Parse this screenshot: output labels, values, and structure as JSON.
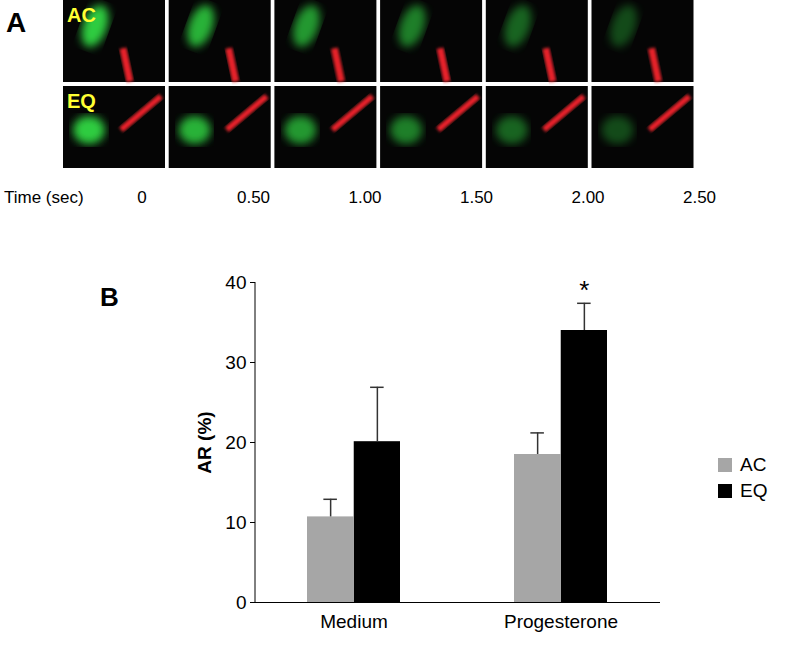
{
  "panel_a": {
    "label": "A",
    "rows": [
      "AC",
      "EQ"
    ],
    "time_label": "Time (sec)",
    "times": [
      "0",
      "0.50",
      "1.00",
      "1.50",
      "2.00",
      "2.50"
    ]
  },
  "chart_data": {
    "type": "bar",
    "title": "B",
    "categories": [
      "Medium",
      "Progesterone"
    ],
    "ylabel": "AR (%)",
    "ylim": [
      0,
      40
    ],
    "yticks": [
      0,
      10,
      20,
      30,
      40
    ],
    "series": [
      {
        "name": "AC",
        "color": "#a6a6a6",
        "values": [
          10.7,
          18.5
        ],
        "errors": [
          2.2,
          2.7
        ]
      },
      {
        "name": "EQ",
        "color": "#000000",
        "values": [
          20.1,
          34.0
        ],
        "errors": [
          6.8,
          3.4
        ]
      }
    ],
    "annotations": [
      {
        "text": "*",
        "category": "Progesterone",
        "series": "EQ"
      }
    ],
    "legend": "right",
    "grid": false
  }
}
